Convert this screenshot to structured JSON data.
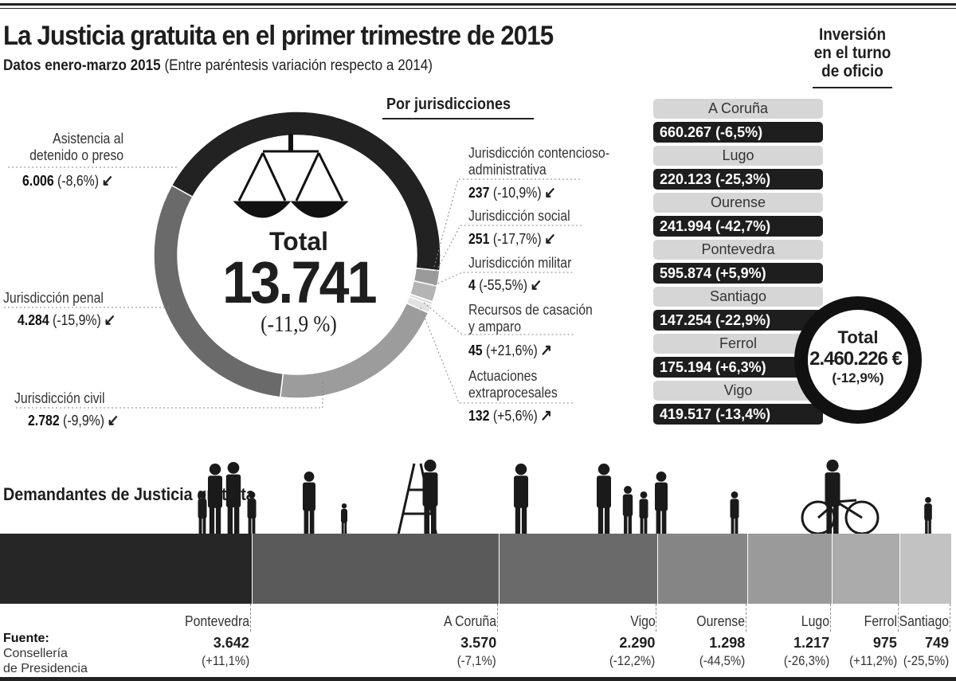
{
  "header": {
    "title": "La Justicia gratuita en el primer trimestre de 2015",
    "subtitle_bold": "Datos enero-marzo 2015",
    "subtitle_note": "(Entre paréntesis variación respecto a 2014)"
  },
  "chart_data": [
    {
      "type": "pie",
      "style": "donut",
      "title": "Por jurisdicciones",
      "center_label": "Total",
      "total": "13.741",
      "total_change": "(-11,9 %)",
      "slices": [
        {
          "label": "Asistencia al detenido o preso",
          "value": 6006,
          "value_text": "6.006",
          "change": "(-8,6%)",
          "trend": "down",
          "color": "#222222"
        },
        {
          "label": "Jurisdicción contencioso-administrativa",
          "value": 237,
          "value_text": "237",
          "change": "(-10,9%)",
          "trend": "down",
          "color": "#9a9a9a"
        },
        {
          "label": "Jurisdicción social",
          "value": 251,
          "value_text": "251",
          "change": "(-17,7%)",
          "trend": "down",
          "color": "#b4b4b4"
        },
        {
          "label": "Jurisdicción militar",
          "value": 4,
          "value_text": "4",
          "change": "(-55,5%)",
          "trend": "down",
          "color": "#cccccc"
        },
        {
          "label": "Recursos de casación y amparo",
          "value": 45,
          "value_text": "45",
          "change": "(+21,6%)",
          "trend": "up",
          "color": "#d8d8d8"
        },
        {
          "label": "Actuaciones extraprocesales",
          "value": 132,
          "value_text": "132",
          "change": "(+5,6%)",
          "trend": "up",
          "color": "#e2e2e2"
        },
        {
          "label": "Jurisdicción civil",
          "value": 2782,
          "value_text": "2.782",
          "change": "(-9,9%)",
          "trend": "down",
          "color": "#9c9c9c"
        },
        {
          "label": "Jurisdicción penal",
          "value": 4284,
          "value_text": "4.284",
          "change": "(-15,9%)",
          "trend": "down",
          "color": "#6a6a6a"
        }
      ]
    },
    {
      "type": "bar",
      "style": "stacked-horizontal",
      "title": "Demandantes de Justicia gratuita",
      "categories": [
        "Pontevedra",
        "A Coruña",
        "Vigo",
        "Ourense",
        "Lugo",
        "Ferrol",
        "Santiago"
      ],
      "values": [
        3642,
        3570,
        2290,
        1298,
        1217,
        975,
        749
      ],
      "value_texts": [
        "3.642",
        "3.570",
        "2.290",
        "1.298",
        "1.217",
        "975",
        "749"
      ],
      "changes": [
        "(+11,1%)",
        "(-7,1%)",
        "(-12,2%)",
        "(-44,5%)",
        "(-26,3%)",
        "(+11,2%)",
        "(-25,5%)"
      ],
      "colors": [
        "#262626",
        "#5a5a5a",
        "#6a6a6a",
        "#858585",
        "#9a9a9a",
        "#ababab",
        "#c2c2c2"
      ]
    }
  ],
  "labels": {
    "asistencia": "Asistencia al",
    "asistencia2": "detenido o preso",
    "penal": "Jurisdicción penal",
    "civil": "Jurisdicción civil",
    "contencioso": "Jurisdicción contencioso-",
    "contencioso2": "administrativa",
    "social": "Jurisdicción social",
    "militar": "Jurisdicción militar",
    "casacion": "Recursos de casación",
    "casacion2": "y amparo",
    "extra": "Actuaciones",
    "extra2": "extraprocesales"
  },
  "investment": {
    "title1": "Inversión",
    "title2": "en el turno",
    "title3": "de oficio",
    "cities": [
      {
        "name": "A Coruña",
        "value": "660.267 (-6,5%)"
      },
      {
        "name": "Lugo",
        "value": "220.123 (-25,3%)"
      },
      {
        "name": "Ourense",
        "value": "241.994 (-42,7%)"
      },
      {
        "name": "Pontevedra",
        "value": "595.874 (+5,9%)"
      },
      {
        "name": "Santiago",
        "value": "147.254 (-22,9%)"
      },
      {
        "name": "Ferrol",
        "value": "175.194 (+6,3%)"
      },
      {
        "name": "Vigo",
        "value": "419.517 (-13,4%)"
      }
    ],
    "total_label": "Total",
    "total_value": "2.460.226 €",
    "total_change": "(-12,9%)"
  },
  "arrows": {
    "down": "↙",
    "up": "↗"
  },
  "source": {
    "label": "Fuente:",
    "line1": "Consellería",
    "line2": "de Presidencia"
  }
}
